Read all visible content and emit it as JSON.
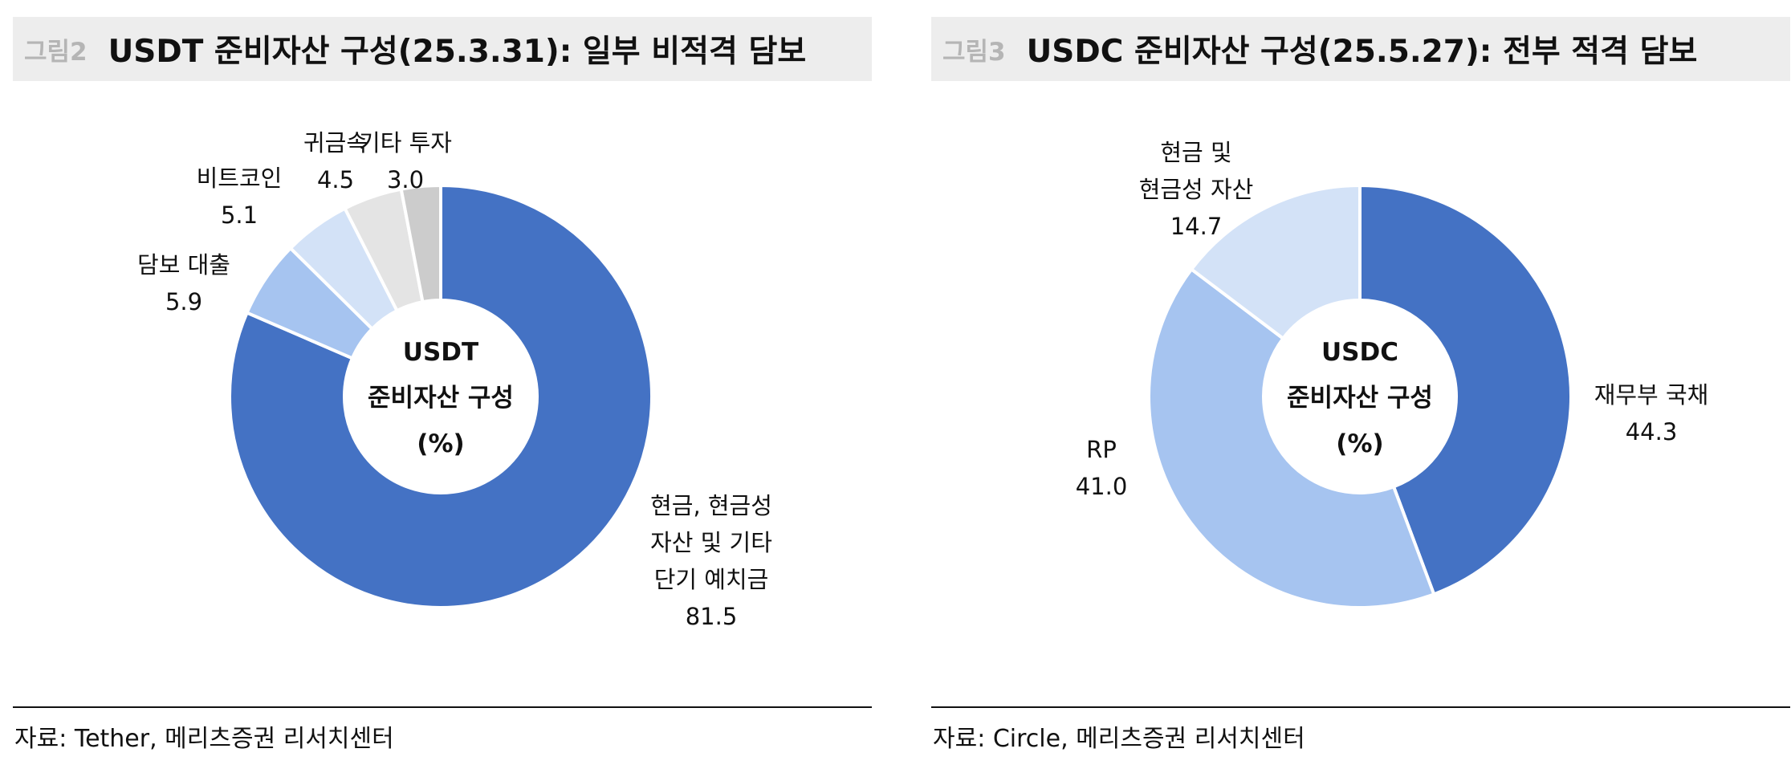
{
  "charts": [
    {
      "figure_label": "그림2",
      "title": "USDT 준비자산 구성(25.3.31): 일부 비적격 담보",
      "source": "자료: Tether, 메리츠증권 리서치센터"
    },
    {
      "figure_label": "그림3",
      "title": "USDC 준비자산 구성(25.5.27): 전부 적격 담보",
      "source": "자료: Circle, 메리츠증권 리서치센터"
    }
  ],
  "chart_data": [
    {
      "type": "pie",
      "variant": "donut",
      "title": "USDT 준비자산 구성(25.3.31): 일부 비적격 담보",
      "center_label": [
        "USDT",
        "준비자산 구성",
        "(%)"
      ],
      "unit": "%",
      "labels": [
        [
          "현금, 현금성",
          "자산 및 기타",
          "단기 예치금"
        ],
        [
          "담보 대출"
        ],
        [
          "비트코인"
        ],
        [
          "귀금속"
        ],
        [
          "기타 투자"
        ]
      ],
      "values": [
        81.5,
        5.9,
        5.1,
        4.5,
        3.0
      ],
      "value_labels": [
        "81.5",
        "5.9",
        "5.1",
        "4.5",
        "3.0"
      ],
      "colors": [
        "#4472c4",
        "#a6c4f0",
        "#d3e2f7",
        "#e4e4e4",
        "#cccccc"
      ],
      "legend": "none"
    },
    {
      "type": "pie",
      "variant": "donut",
      "title": "USDC 준비자산 구성(25.5.27): 전부 적격 담보",
      "center_label": [
        "USDC",
        "준비자산 구성",
        "(%)"
      ],
      "unit": "%",
      "labels": [
        [
          "재무부 국채"
        ],
        [
          "RP"
        ],
        [
          "현금 및",
          "현금성 자산"
        ]
      ],
      "values": [
        44.3,
        41.0,
        14.7
      ],
      "value_labels": [
        "44.3",
        "41.0",
        "14.7"
      ],
      "colors": [
        "#4472c4",
        "#a6c4f0",
        "#d3e2f7"
      ],
      "legend": "none"
    }
  ]
}
